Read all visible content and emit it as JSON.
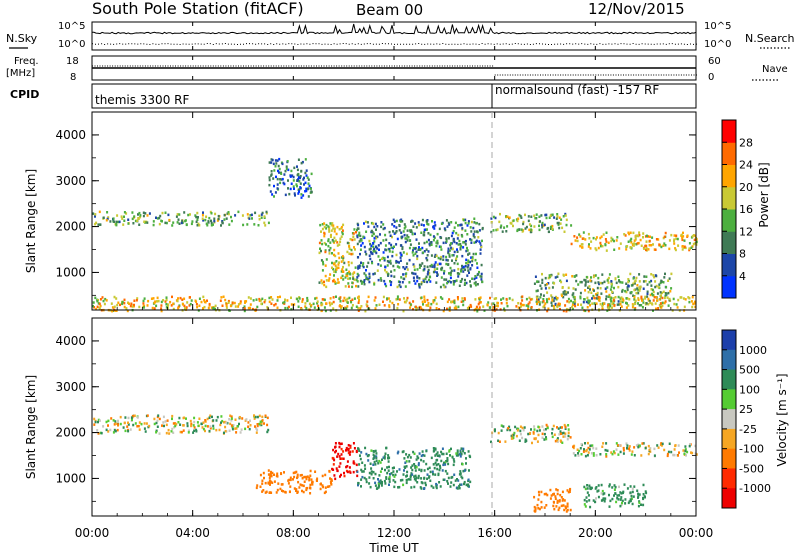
{
  "header": {
    "title": "South Pole Station (fitACF)",
    "beam": "Beam 00",
    "date": "12/Nov/2015"
  },
  "summary": {
    "nsky_label": "N.Sky",
    "nsearch_label": "N.Search",
    "noise_top_tick": "10^5",
    "noise_bottom_tick": "10^0",
    "freq_label_1": "Freq.",
    "freq_label_2": "[MHz]",
    "freq_ticks": [
      "18",
      "8"
    ],
    "nave_label": "Nave",
    "nave_ticks": [
      "60",
      "0"
    ],
    "cpid_label": "CPID",
    "cpid_segments": [
      {
        "label": "themis 3300 RF",
        "start_hour": 0,
        "end_hour": 16
      },
      {
        "label": "normalsound (fast) -157 RF",
        "start_hour": 16,
        "end_hour": 24
      }
    ],
    "freq_mhz": 11,
    "nave_before_16": 55,
    "nave_after_16": 7
  },
  "power_panel": {
    "ylabel": "Slant Range [km]",
    "yticks": [
      "4000",
      "3000",
      "2000",
      "1000"
    ],
    "colorbar_label": "Power [dB]",
    "colorbar_ticks": [
      "28",
      "24",
      "20",
      "16",
      "12",
      "8",
      "4"
    ],
    "colors": [
      "#0033ff",
      "#1c46a8",
      "#3f7a55",
      "#4caf3f",
      "#c9c934",
      "#ffa500",
      "#ff6a00",
      "#ff0000"
    ]
  },
  "velocity_panel": {
    "ylabel": "Slant Range [km]",
    "yticks": [
      "4000",
      "3000",
      "2000",
      "1000"
    ],
    "colorbar_label": "Velocity [m s⁻¹]",
    "colorbar_ticks": [
      "1000",
      "500",
      "100",
      "25",
      "-25",
      "-100",
      "-500",
      "-1000"
    ],
    "colors": [
      "#1c3faa",
      "#2e6fa8",
      "#2e8b57",
      "#55cc33",
      "#c8c8c0",
      "#f5a623",
      "#ff7a00",
      "#ff2a00",
      "#ee0000"
    ]
  },
  "xaxis": {
    "label": "Time UT",
    "ticks": [
      "00:00",
      "04:00",
      "08:00",
      "12:00",
      "16:00",
      "20:00",
      "00:00"
    ]
  },
  "chart_data": [
    {
      "type": "heatmap",
      "title": "South Pole Station (fitACF) Beam 00 12/Nov/2015",
      "xlabel": "Time UT",
      "ylabel": "Slant Range [km]",
      "xlim": [
        0,
        24
      ],
      "ylim": [
        180,
        4500
      ],
      "quantity": "Power [dB]",
      "zlim": [
        0,
        30
      ],
      "features": [
        {
          "t": [
            0,
            7
          ],
          "range": [
            2050,
            2350
          ],
          "value": 14
        },
        {
          "t": [
            7,
            8.7
          ],
          "range": [
            2650,
            3500
          ],
          "value": 8
        },
        {
          "t": [
            9,
            10.5
          ],
          "range": [
            700,
            2100
          ],
          "value": 18
        },
        {
          "t": [
            10.5,
            15.5
          ],
          "range": [
            700,
            2200
          ],
          "value": 10
        },
        {
          "t": [
            15.8,
            19
          ],
          "range": [
            1900,
            2300
          ],
          "value": 14
        },
        {
          "t": [
            19,
            24
          ],
          "range": [
            1500,
            1900
          ],
          "value": 20
        },
        {
          "t": [
            17.5,
            23
          ],
          "range": [
            300,
            1000
          ],
          "value": 14
        },
        {
          "t": [
            0,
            24
          ],
          "range": [
            180,
            500
          ],
          "value": 20
        }
      ]
    },
    {
      "type": "heatmap",
      "title": "South Pole Station (fitACF) Beam 00 12/Nov/2015",
      "xlabel": "Time UT",
      "ylabel": "Slant Range [km]",
      "xlim": [
        0,
        24
      ],
      "ylim": [
        180,
        4500
      ],
      "quantity": "Velocity [m s-1]",
      "zlim": [
        -1000,
        1000
      ],
      "features": [
        {
          "t": [
            0,
            7
          ],
          "range": [
            2000,
            2400
          ],
          "value": 0
        },
        {
          "t": [
            6.5,
            9.5
          ],
          "range": [
            700,
            1200
          ],
          "value": -300
        },
        {
          "t": [
            9.5,
            10.5
          ],
          "range": [
            1000,
            1800
          ],
          "value": -900
        },
        {
          "t": [
            10.5,
            15
          ],
          "range": [
            800,
            1700
          ],
          "value": 200
        },
        {
          "t": [
            15.8,
            19
          ],
          "range": [
            1800,
            2200
          ],
          "value": 0
        },
        {
          "t": [
            19,
            24
          ],
          "range": [
            1500,
            1800
          ],
          "value": 0
        },
        {
          "t": [
            17.5,
            19
          ],
          "range": [
            300,
            800
          ],
          "value": -300
        },
        {
          "t": [
            19.5,
            22
          ],
          "range": [
            400,
            900
          ],
          "value": 150
        }
      ]
    }
  ]
}
